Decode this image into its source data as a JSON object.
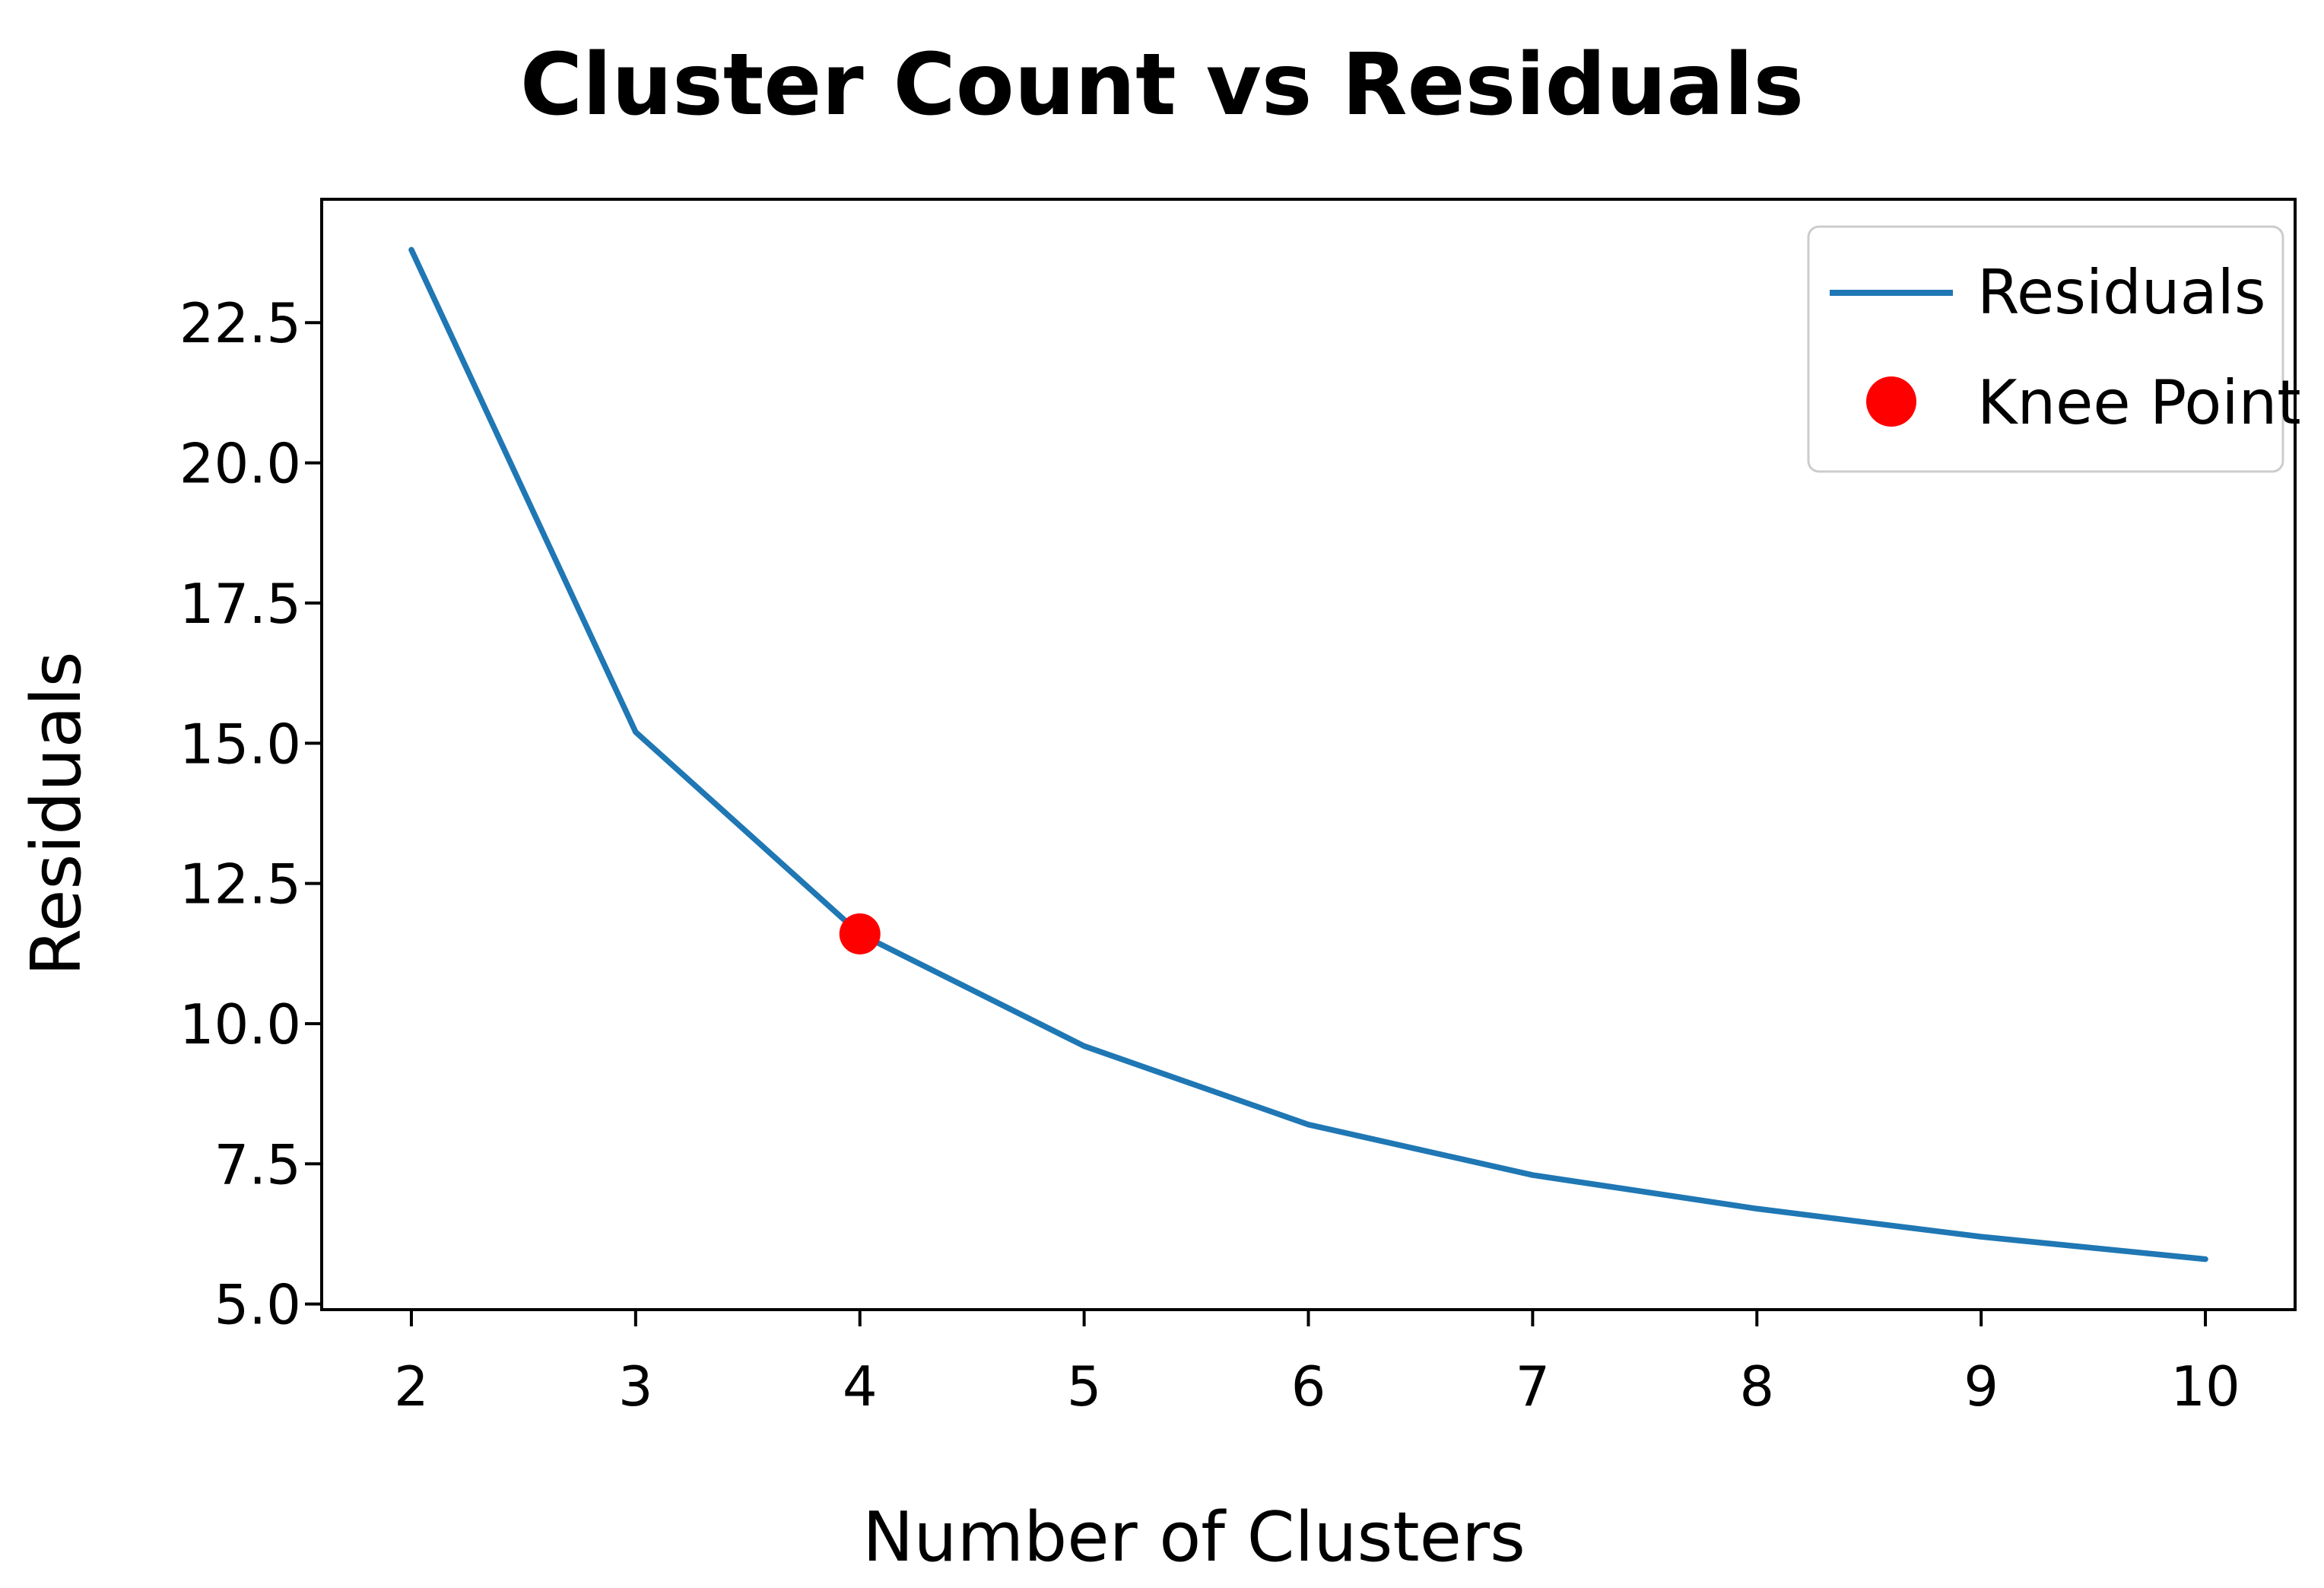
{
  "figure": {
    "title": "Cluster Count vs Residuals"
  },
  "chart_data": {
    "type": "line",
    "title": "Cluster Count vs Residuals",
    "xlabel": "Number of Clusters",
    "ylabel": "Residuals",
    "x": [
      2,
      3,
      4,
      5,
      6,
      7,
      8,
      9,
      10
    ],
    "series": [
      {
        "name": "Residuals",
        "color": "#1f77b4",
        "values": [
          23.8,
          15.2,
          11.6,
          9.6,
          8.2,
          7.3,
          6.7,
          6.2,
          5.8
        ]
      }
    ],
    "knee_point": {
      "name": "Knee Point",
      "color": "#ff0000",
      "x": 4,
      "y": 11.6
    },
    "xticks": [
      "2",
      "3",
      "4",
      "5",
      "6",
      "7",
      "8",
      "9",
      "10"
    ],
    "xtick_values": [
      2,
      3,
      4,
      5,
      6,
      7,
      8,
      9,
      10
    ],
    "ytick_labels": [
      "22.5",
      "20.0",
      "17.5",
      "15.0",
      "12.5",
      "10.0",
      "7.5",
      "5.0"
    ],
    "ytick_values": [
      22.5,
      20.0,
      17.5,
      15.0,
      12.5,
      10.0,
      7.5,
      5.0
    ],
    "xlim": [
      1.6,
      10.4
    ],
    "ylim": [
      4.9,
      24.7
    ],
    "grid": false,
    "legend_position": "upper right",
    "spine_color": "#000000",
    "background": "#ffffff"
  }
}
